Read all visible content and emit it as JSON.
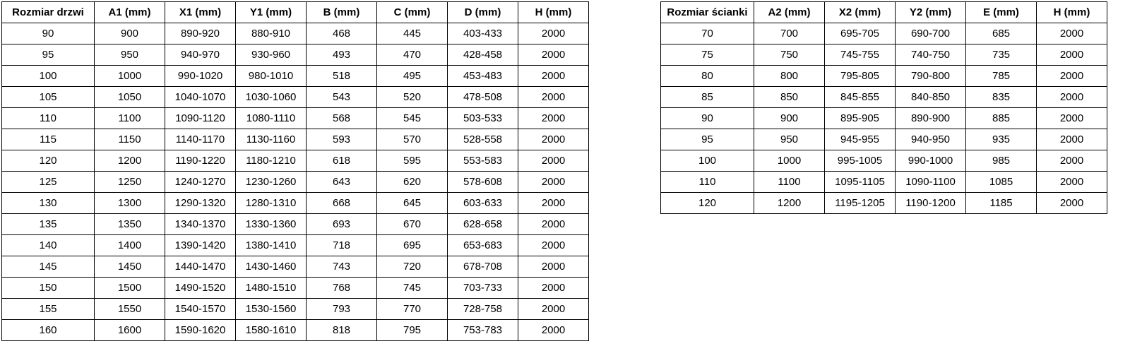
{
  "page": {
    "background_color": "#ffffff",
    "text_color": "#000000",
    "border_color": "#000000"
  },
  "door_table": {
    "title": "Rozmiar drzwi",
    "headers": [
      "Rozmiar drzwi",
      "A1 (mm)",
      "X1 (mm)",
      "Y1 (mm)",
      "B (mm)",
      "C (mm)",
      "D (mm)",
      "H (mm)"
    ],
    "rows": [
      [
        "90",
        "900",
        "890-920",
        "880-910",
        "468",
        "445",
        "403-433",
        "2000"
      ],
      [
        "95",
        "950",
        "940-970",
        "930-960",
        "493",
        "470",
        "428-458",
        "2000"
      ],
      [
        "100",
        "1000",
        "990-1020",
        "980-1010",
        "518",
        "495",
        "453-483",
        "2000"
      ],
      [
        "105",
        "1050",
        "1040-1070",
        "1030-1060",
        "543",
        "520",
        "478-508",
        "2000"
      ],
      [
        "110",
        "1100",
        "1090-1120",
        "1080-1110",
        "568",
        "545",
        "503-533",
        "2000"
      ],
      [
        "115",
        "1150",
        "1140-1170",
        "1130-1160",
        "593",
        "570",
        "528-558",
        "2000"
      ],
      [
        "120",
        "1200",
        "1190-1220",
        "1180-1210",
        "618",
        "595",
        "553-583",
        "2000"
      ],
      [
        "125",
        "1250",
        "1240-1270",
        "1230-1260",
        "643",
        "620",
        "578-608",
        "2000"
      ],
      [
        "130",
        "1300",
        "1290-1320",
        "1280-1310",
        "668",
        "645",
        "603-633",
        "2000"
      ],
      [
        "135",
        "1350",
        "1340-1370",
        "1330-1360",
        "693",
        "670",
        "628-658",
        "2000"
      ],
      [
        "140",
        "1400",
        "1390-1420",
        "1380-1410",
        "718",
        "695",
        "653-683",
        "2000"
      ],
      [
        "145",
        "1450",
        "1440-1470",
        "1430-1460",
        "743",
        "720",
        "678-708",
        "2000"
      ],
      [
        "150",
        "1500",
        "1490-1520",
        "1480-1510",
        "768",
        "745",
        "703-733",
        "2000"
      ],
      [
        "155",
        "1550",
        "1540-1570",
        "1530-1560",
        "793",
        "770",
        "728-758",
        "2000"
      ],
      [
        "160",
        "1600",
        "1590-1620",
        "1580-1610",
        "818",
        "795",
        "753-783",
        "2000"
      ]
    ]
  },
  "wall_table": {
    "title": "Rozmiar ścianki",
    "headers": [
      "Rozmiar ścianki",
      "A2 (mm)",
      "X2 (mm)",
      "Y2 (mm)",
      "E (mm)",
      "H (mm)"
    ],
    "rows": [
      [
        "70",
        "700",
        "695-705",
        "690-700",
        "685",
        "2000"
      ],
      [
        "75",
        "750",
        "745-755",
        "740-750",
        "735",
        "2000"
      ],
      [
        "80",
        "800",
        "795-805",
        "790-800",
        "785",
        "2000"
      ],
      [
        "85",
        "850",
        "845-855",
        "840-850",
        "835",
        "2000"
      ],
      [
        "90",
        "900",
        "895-905",
        "890-900",
        "885",
        "2000"
      ],
      [
        "95",
        "950",
        "945-955",
        "940-950",
        "935",
        "2000"
      ],
      [
        "100",
        "1000",
        "995-1005",
        "990-1000",
        "985",
        "2000"
      ],
      [
        "110",
        "1100",
        "1095-1105",
        "1090-1100",
        "1085",
        "2000"
      ],
      [
        "120",
        "1200",
        "1195-1205",
        "1190-1200",
        "1185",
        "2000"
      ]
    ]
  }
}
